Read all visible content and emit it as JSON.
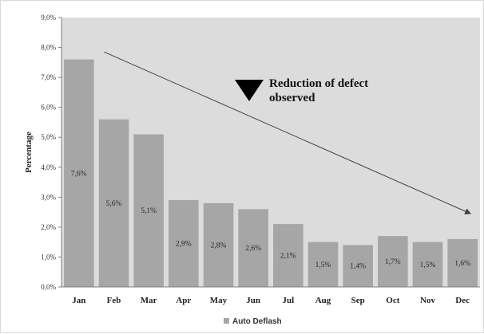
{
  "chart_data": {
    "type": "bar",
    "categories": [
      "Jan",
      "Feb",
      "Mar",
      "Apr",
      "May",
      "Jun",
      "Jul",
      "Aug",
      "Sep",
      "Oct",
      "Nov",
      "Dec"
    ],
    "series": [
      {
        "name": "Auto Deflash",
        "values": [
          7.6,
          5.6,
          5.1,
          2.9,
          2.8,
          2.6,
          2.1,
          1.5,
          1.4,
          1.7,
          1.5,
          1.6
        ],
        "labels": [
          "7,6%",
          "5,6%",
          "5,1%",
          "2,9%",
          "2,8%",
          "2,6%",
          "2,1%",
          "1,5%",
          "1,4%",
          "1,7%",
          "1,5%",
          "1,6%"
        ]
      }
    ],
    "ylabel": "Percentage",
    "xlabel": "",
    "ylim": [
      0,
      9
    ],
    "yticks": [
      0,
      1,
      2,
      3,
      4,
      5,
      6,
      7,
      8,
      9
    ],
    "ytick_labels": [
      "0,0%",
      "1,0%",
      "2,0%",
      "3,0%",
      "4,0%",
      "5,0%",
      "6,0%",
      "7,0%",
      "8,0%",
      "9,0%"
    ],
    "grid": false,
    "legend_position": "bottom",
    "annotation": {
      "lines": [
        "Reduction of defect",
        "observed"
      ],
      "trend_arrow": {
        "from": [
          "Feb",
          7.85
        ],
        "to": [
          "Dec",
          2.45
        ]
      }
    },
    "colors": {
      "bar": "#a6a6a6",
      "plot_background": "#dcdcdc",
      "arrow": "#404040",
      "marker": "#000000"
    }
  }
}
